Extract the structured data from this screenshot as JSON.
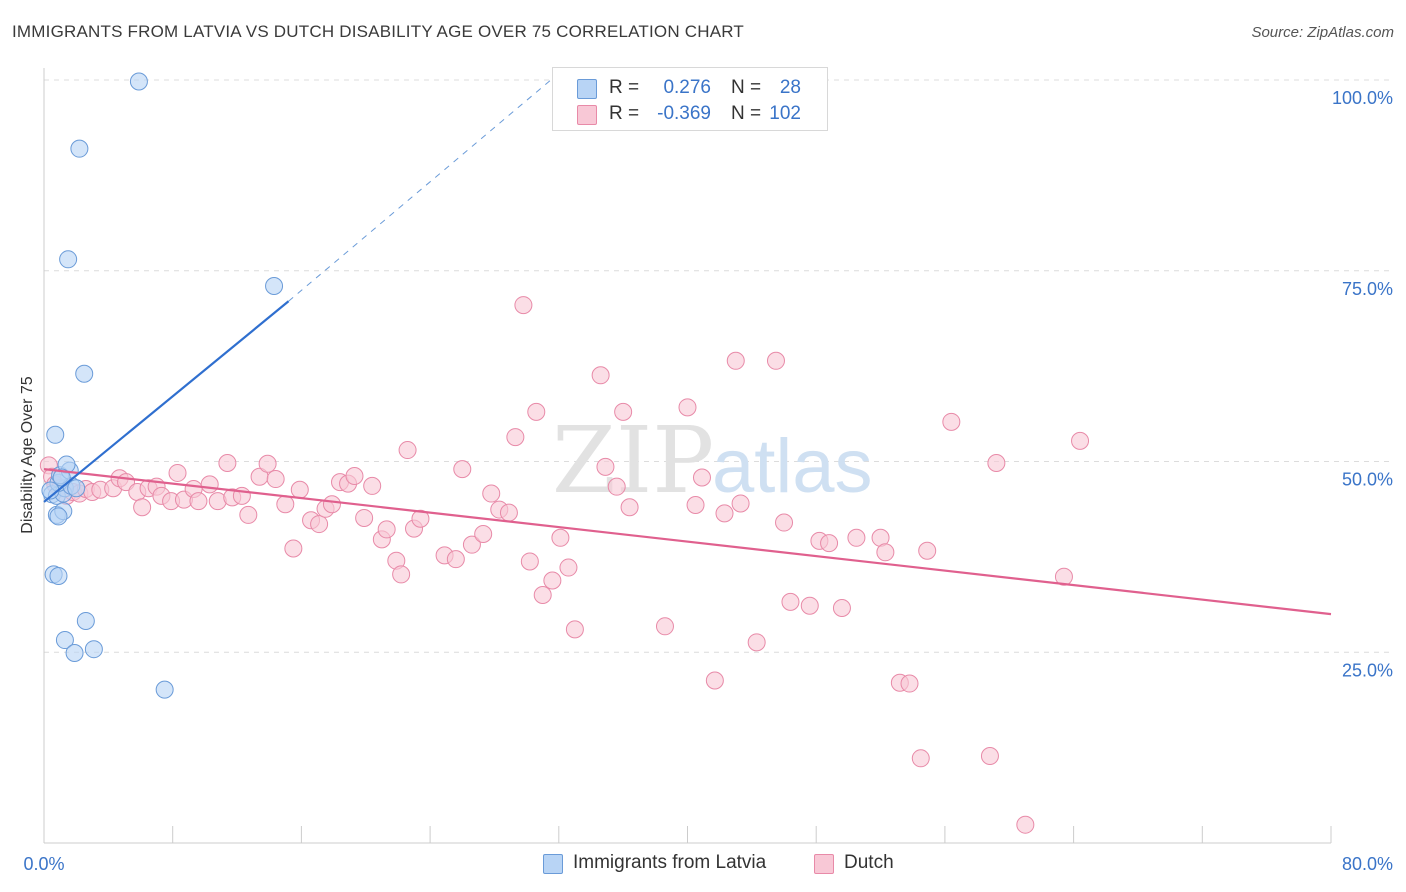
{
  "title": "IMMIGRANTS FROM LATVIA VS DUTCH DISABILITY AGE OVER 75 CORRELATION CHART",
  "source": "Source: ZipAtlas.com",
  "watermark": {
    "zip": "ZIP",
    "atlas": "atlas"
  },
  "legend": {
    "rows": [
      {
        "r_label": "R =",
        "r_value": "0.276",
        "n_label": "N =",
        "n_value": "28"
      },
      {
        "r_label": "R =",
        "r_value": "-0.369",
        "n_label": "N =",
        "n_value": "102"
      }
    ]
  },
  "bottom_legend": {
    "series1": "Immigrants from Latvia",
    "series2": "Dutch"
  },
  "colors": {
    "latvia_fill": "#b8d4f5",
    "latvia_stroke": "#6a9bd8",
    "latvia_line": "#2f6fcf",
    "dutch_fill": "#f8c8d6",
    "dutch_stroke": "#e88aa8",
    "dutch_line": "#e0608e",
    "axis_text": "#3a74c8",
    "grid": "#dcdcdc"
  },
  "chart_data": {
    "type": "scatter",
    "title": "IMMIGRANTS FROM LATVIA VS DUTCH DISABILITY AGE OVER 75 CORRELATION CHART",
    "xlabel": "",
    "ylabel": "Disability Age Over 75",
    "xlim": [
      0,
      80
    ],
    "ylim": [
      0,
      100
    ],
    "x_tick_labels": [
      "0.0%",
      "80.0%"
    ],
    "y_ticks": [
      25,
      50,
      75,
      100
    ],
    "y_tick_labels": [
      "25.0%",
      "50.0%",
      "75.0%",
      "100.0%"
    ],
    "grid": true,
    "legend_position": "top-center",
    "series": [
      {
        "name": "Immigrants from Latvia",
        "r": 0.276,
        "n": 28,
        "trend": {
          "x": [
            0,
            15.2
          ],
          "y": [
            44.7,
            71
          ],
          "dashed_to": [
            31.5,
            100
          ]
        },
        "points": [
          [
            0.5,
            45.7
          ],
          [
            0.8,
            45.5
          ],
          [
            1.3,
            46.5
          ],
          [
            1.2,
            45.8
          ],
          [
            0.9,
            47.2
          ],
          [
            1.7,
            46.8
          ],
          [
            2.0,
            46.5
          ],
          [
            1.0,
            48.2
          ],
          [
            1.6,
            48.8
          ],
          [
            1.4,
            49.6
          ],
          [
            0.7,
            53.5
          ],
          [
            2.5,
            61.5
          ],
          [
            1.5,
            76.5
          ],
          [
            2.2,
            91.0
          ],
          [
            5.9,
            99.8
          ],
          [
            14.3,
            73.0
          ],
          [
            0.8,
            43.0
          ],
          [
            1.2,
            43.5
          ],
          [
            0.9,
            42.8
          ],
          [
            0.6,
            35.2
          ],
          [
            0.9,
            35.0
          ],
          [
            1.3,
            26.6
          ],
          [
            2.6,
            29.1
          ],
          [
            1.9,
            24.9
          ],
          [
            3.1,
            25.4
          ],
          [
            7.5,
            20.1
          ],
          [
            0.4,
            46.2
          ],
          [
            1.1,
            47.9
          ]
        ]
      },
      {
        "name": "Dutch",
        "r": -0.369,
        "n": 102,
        "trend": {
          "x": [
            0,
            80
          ],
          "y": [
            49.0,
            30.0
          ]
        },
        "points": [
          [
            0.3,
            49.5
          ],
          [
            0.5,
            48.0
          ],
          [
            0.7,
            47.0
          ],
          [
            1.0,
            46.5
          ],
          [
            1.4,
            45.5
          ],
          [
            1.8,
            46.0
          ],
          [
            2.2,
            45.8
          ],
          [
            2.6,
            46.4
          ],
          [
            3.0,
            46.0
          ],
          [
            3.5,
            46.3
          ],
          [
            4.3,
            46.5
          ],
          [
            4.7,
            47.8
          ],
          [
            5.1,
            47.3
          ],
          [
            5.8,
            46.0
          ],
          [
            6.1,
            44.0
          ],
          [
            6.5,
            46.5
          ],
          [
            7.0,
            46.7
          ],
          [
            7.3,
            45.5
          ],
          [
            7.9,
            44.8
          ],
          [
            8.3,
            48.5
          ],
          [
            8.7,
            45.0
          ],
          [
            9.3,
            46.4
          ],
          [
            9.6,
            44.8
          ],
          [
            10.3,
            47.0
          ],
          [
            10.8,
            44.8
          ],
          [
            11.4,
            49.8
          ],
          [
            11.7,
            45.3
          ],
          [
            12.3,
            45.5
          ],
          [
            12.7,
            43.0
          ],
          [
            13.4,
            48.0
          ],
          [
            13.9,
            49.7
          ],
          [
            14.4,
            47.7
          ],
          [
            15.0,
            44.4
          ],
          [
            15.5,
            38.6
          ],
          [
            15.9,
            46.3
          ],
          [
            16.6,
            42.3
          ],
          [
            17.1,
            41.8
          ],
          [
            17.5,
            43.8
          ],
          [
            17.9,
            44.4
          ],
          [
            18.4,
            47.3
          ],
          [
            18.9,
            47.1
          ],
          [
            19.3,
            48.1
          ],
          [
            19.9,
            42.6
          ],
          [
            20.4,
            46.8
          ],
          [
            21.0,
            39.8
          ],
          [
            21.3,
            41.1
          ],
          [
            21.9,
            37.0
          ],
          [
            22.2,
            35.2
          ],
          [
            22.6,
            51.5
          ],
          [
            23.0,
            41.2
          ],
          [
            23.4,
            42.5
          ],
          [
            24.9,
            37.7
          ],
          [
            25.6,
            37.2
          ],
          [
            26.0,
            49.0
          ],
          [
            26.6,
            39.1
          ],
          [
            27.3,
            40.5
          ],
          [
            27.8,
            45.8
          ],
          [
            28.3,
            43.7
          ],
          [
            28.9,
            43.3
          ],
          [
            29.3,
            53.2
          ],
          [
            29.8,
            70.5
          ],
          [
            30.2,
            36.9
          ],
          [
            30.6,
            56.5
          ],
          [
            31.0,
            32.5
          ],
          [
            31.6,
            34.4
          ],
          [
            32.1,
            40.0
          ],
          [
            32.6,
            36.1
          ],
          [
            33.0,
            28.0
          ],
          [
            34.6,
            61.3
          ],
          [
            34.9,
            49.3
          ],
          [
            35.6,
            46.7
          ],
          [
            36.0,
            56.5
          ],
          [
            36.4,
            44.0
          ],
          [
            38.6,
            28.4
          ],
          [
            40.0,
            57.1
          ],
          [
            40.5,
            44.3
          ],
          [
            40.9,
            47.9
          ],
          [
            41.7,
            21.3
          ],
          [
            42.3,
            43.2
          ],
          [
            43.0,
            63.2
          ],
          [
            43.3,
            44.5
          ],
          [
            44.3,
            26.3
          ],
          [
            45.5,
            63.2
          ],
          [
            46.0,
            42.0
          ],
          [
            46.4,
            31.6
          ],
          [
            47.6,
            31.1
          ],
          [
            48.2,
            39.6
          ],
          [
            48.8,
            39.3
          ],
          [
            49.6,
            30.8
          ],
          [
            50.5,
            40.0
          ],
          [
            52.0,
            40.0
          ],
          [
            52.3,
            38.1
          ],
          [
            53.2,
            21.0
          ],
          [
            53.8,
            20.9
          ],
          [
            54.5,
            11.1
          ],
          [
            54.9,
            38.3
          ],
          [
            56.4,
            55.2
          ],
          [
            58.8,
            11.4
          ],
          [
            59.2,
            49.8
          ],
          [
            61.0,
            2.4
          ],
          [
            63.4,
            34.9
          ],
          [
            64.4,
            52.7
          ]
        ]
      }
    ]
  }
}
